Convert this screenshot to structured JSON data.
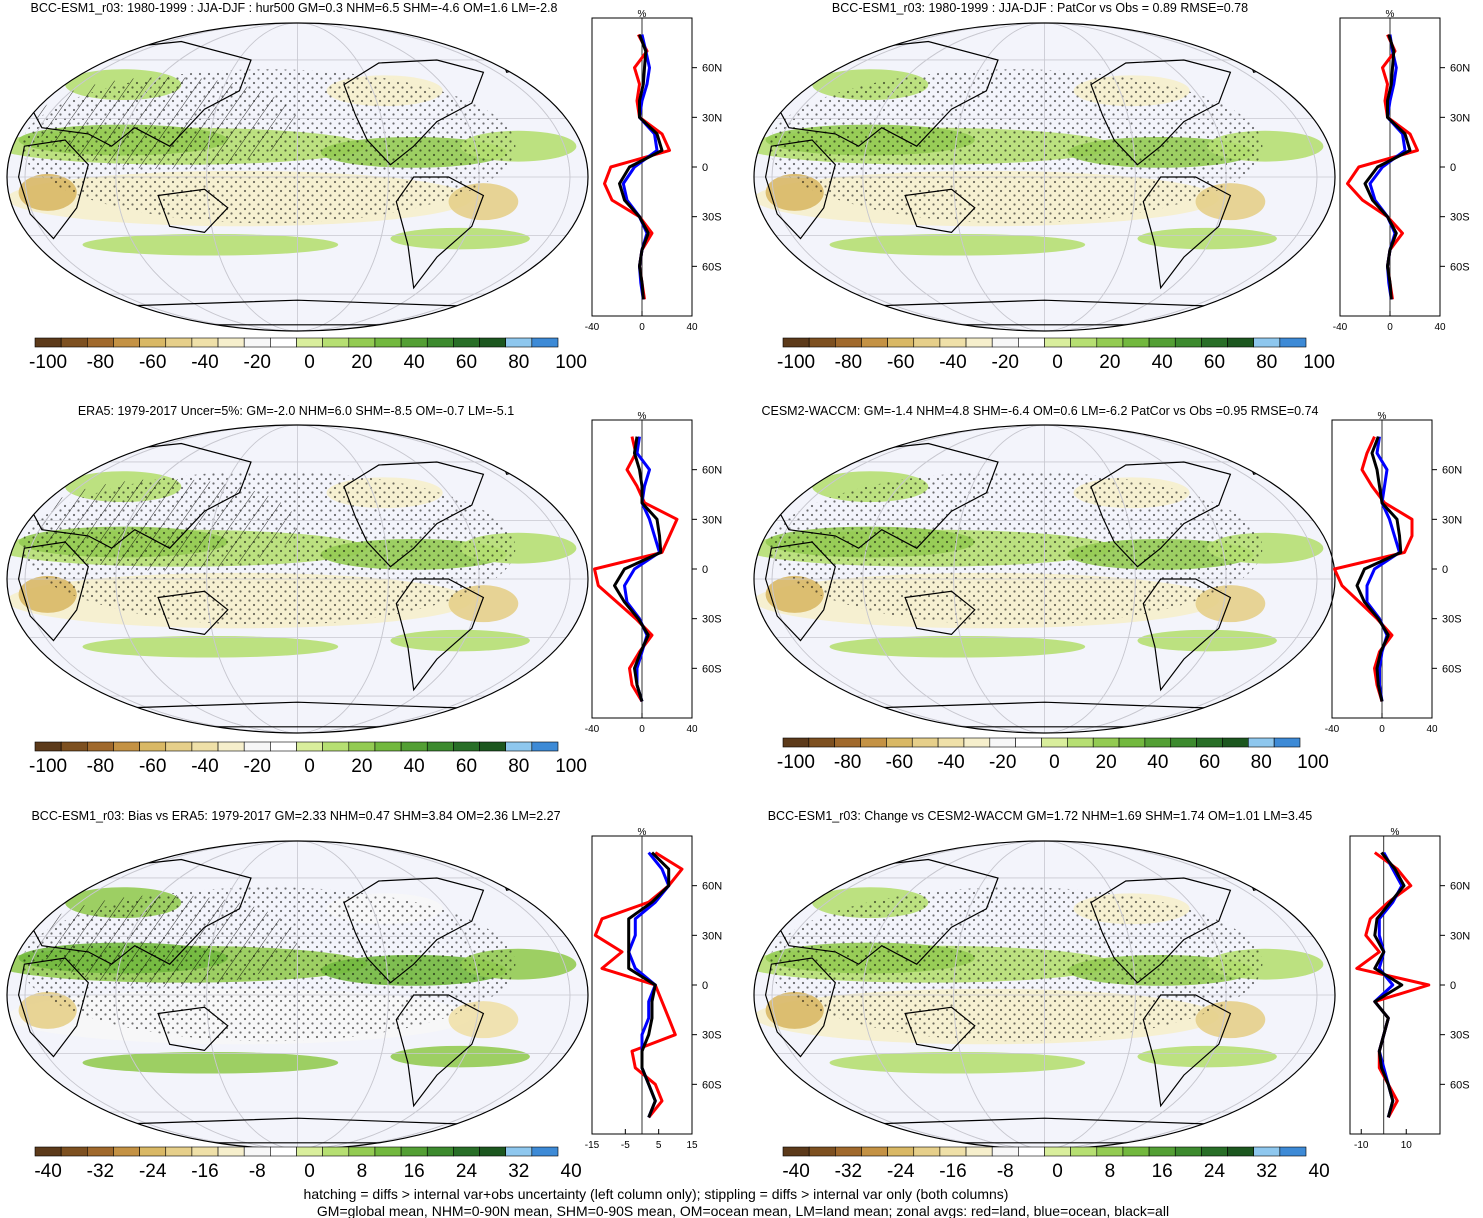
{
  "colors": {
    "bg": "#ffffff",
    "land_line": "#000000",
    "zonal_land": "#ff0000",
    "zonal_ocean": "#0000ff",
    "zonal_all": "#000000",
    "scale": [
      "#5c3a1a",
      "#7d5020",
      "#a0692c",
      "#c49244",
      "#d9b865",
      "#e6cf8a",
      "#efe0a8",
      "#f6efcc",
      "#f7f7f7",
      "#ffffff",
      "#d9ee9c",
      "#b6df72",
      "#93cb52",
      "#72b83e",
      "#539f34",
      "#3c8a2e",
      "#286e27",
      "#1c571f",
      "#8ec7ee",
      "#3d8ad6"
    ]
  },
  "panels": [
    {
      "title": "BCC-ESM1_r03: 1980-1999 : JJA-DJF : hur500 GM=0.3 NHM=6.5 SHM=-4.6 OM=1.6 LM=-2.8",
      "colorbar_labels": [
        "-100",
        "-80",
        "-60",
        "-40",
        "-20",
        "0",
        "20",
        "40",
        "60",
        "80",
        "100"
      ],
      "zonal_unit": "%",
      "zonal_xticks": [
        "-40",
        "0",
        "40"
      ],
      "zonal_lat_labels": [
        "60N",
        "30N",
        "0",
        "30S",
        "60S"
      ],
      "hatching": true
    },
    {
      "title": "BCC-ESM1_r03: 1980-1999 : JJA-DJF : PatCor vs Obs = 0.89 RMSE=0.78",
      "colorbar_labels": [
        "-100",
        "-80",
        "-60",
        "-40",
        "-20",
        "0",
        "20",
        "40",
        "60",
        "80",
        "100"
      ],
      "zonal_unit": "%",
      "zonal_xticks": [
        "-40",
        "0",
        "40"
      ],
      "zonal_lat_labels": [
        "60N",
        "30N",
        "0",
        "30S",
        "60S"
      ],
      "hatching": false
    },
    {
      "title": "ERA5: 1979-2017 Uncer=5%: GM=-2.0 NHM=6.0 SHM=-8.5 OM=-0.7 LM=-5.1",
      "colorbar_labels": [
        "-100",
        "-80",
        "-60",
        "-40",
        "-20",
        "0",
        "20",
        "40",
        "60",
        "80",
        "100"
      ],
      "zonal_unit": "%",
      "zonal_xticks": [
        "-40",
        "0",
        "40"
      ],
      "zonal_lat_labels": [
        "60N",
        "30N",
        "0",
        "30S",
        "60S"
      ],
      "hatching": true
    },
    {
      "title": "CESM2-WACCM: GM=-1.4 NHM=4.8 SHM=-6.4 OM=0.6 LM=-6.2 PatCor vs Obs =0.95 RMSE=0.74",
      "colorbar_labels": [
        "-100",
        "-80",
        "-60",
        "-40",
        "-20",
        "0",
        "20",
        "40",
        "60",
        "80",
        "100"
      ],
      "zonal_unit": "%",
      "zonal_xticks": [
        "-40",
        "0",
        "40"
      ],
      "zonal_lat_labels": [
        "60N",
        "30N",
        "0",
        "30S",
        "60S"
      ],
      "hatching": false
    },
    {
      "title": "BCC-ESM1_r03: Bias vs ERA5: 1979-2017 GM=2.33 NHM=0.47 SHM=3.84 OM=2.36 LM=2.27",
      "colorbar_labels": [
        "-40",
        "-32",
        "-24",
        "-16",
        "-8",
        "0",
        "8",
        "16",
        "24",
        "32",
        "40"
      ],
      "zonal_unit": "%",
      "zonal_xticks": [
        "-15",
        "-5",
        "5",
        "15"
      ],
      "zonal_lat_labels": [
        "60N",
        "30N",
        "0",
        "30S",
        "60S"
      ],
      "hatching": true
    },
    {
      "title": "BCC-ESM1_r03: Change vs CESM2-WACCM GM=1.72 NHM=1.69 SHM=1.74 OM=1.01 LM=3.45",
      "colorbar_labels": [
        "-40",
        "-32",
        "-24",
        "-16",
        "-8",
        "0",
        "8",
        "16",
        "24",
        "32",
        "40"
      ],
      "zonal_unit": "%",
      "zonal_xticks": [
        "-10",
        "10"
      ],
      "zonal_lat_labels": [
        "60N",
        "30N",
        "0",
        "30S",
        "60S"
      ],
      "hatching": false
    }
  ],
  "footer": {
    "line1": "hatching = diffs > internal var+obs uncertainty (left column only); stippling = diffs > internal var only (both columns)",
    "line2": "GM=global mean, NHM=0-90N mean, SHM=0-90S mean, OM=ocean mean, LM=land mean; zonal avgs: red=land, blue=ocean, black=all"
  },
  "chart_data": [
    {
      "type": "line",
      "title": "BCC-ESM1_r03: 1980-1999 : JJA-DJF : hur500 GM=0.3 NHM=6.5 SHM=-4.6 OM=1.6 LM=-2.8",
      "xlabel": "%",
      "xlim": [
        -40,
        40
      ],
      "ylim": [
        -90,
        90
      ],
      "x_ticks": [
        "-40",
        "0",
        "40"
      ],
      "y_ticks": [
        "60N",
        "30N",
        "0",
        "30S",
        "60S"
      ],
      "lat": [
        80,
        70,
        60,
        50,
        40,
        30,
        20,
        10,
        0,
        -10,
        -20,
        -30,
        -40,
        -50,
        -60,
        -70,
        -80
      ],
      "series": [
        {
          "name": "land",
          "values": [
            -3,
            4,
            -6,
            -2,
            -4,
            -2,
            16,
            22,
            -25,
            -30,
            -24,
            -2,
            8,
            0,
            -2,
            0,
            2
          ]
        },
        {
          "name": "ocean",
          "values": [
            0,
            3,
            6,
            4,
            0,
            -2,
            10,
            12,
            -6,
            -15,
            -12,
            -2,
            4,
            0,
            -2,
            -1,
            1
          ]
        },
        {
          "name": "all",
          "values": [
            -2,
            3,
            2,
            1,
            -2,
            -2,
            12,
            16,
            -10,
            -18,
            -14,
            -2,
            5,
            0,
            -2,
            0,
            1
          ]
        }
      ]
    },
    {
      "type": "line",
      "title": "BCC-ESM1_r03: 1980-1999 : JJA-DJF : PatCor vs Obs = 0.89 RMSE=0.78",
      "xlabel": "%",
      "xlim": [
        -40,
        40
      ],
      "ylim": [
        -90,
        90
      ],
      "x_ticks": [
        "-40",
        "0",
        "40"
      ],
      "y_ticks": [
        "60N",
        "30N",
        "0",
        "30S",
        "60S"
      ],
      "lat": [
        80,
        70,
        60,
        50,
        40,
        30,
        20,
        10,
        0,
        -10,
        -20,
        -30,
        -40,
        -50,
        -60,
        -70,
        -80
      ],
      "series": [
        {
          "name": "land",
          "values": [
            -2,
            4,
            -6,
            -2,
            -4,
            -2,
            16,
            22,
            -25,
            -34,
            -22,
            -2,
            10,
            0,
            -2,
            0,
            2
          ]
        },
        {
          "name": "ocean",
          "values": [
            0,
            2,
            5,
            3,
            0,
            -2,
            10,
            12,
            -6,
            -16,
            -12,
            -2,
            4,
            0,
            -2,
            -1,
            1
          ]
        },
        {
          "name": "all",
          "values": [
            -1,
            3,
            2,
            1,
            -2,
            -2,
            12,
            16,
            -10,
            -20,
            -14,
            -2,
            5,
            0,
            -2,
            0,
            1
          ]
        }
      ]
    },
    {
      "type": "line",
      "title": "ERA5: 1979-2017 Uncer=5%: GM=-2.0 NHM=6.0 SHM=-8.5 OM=-0.7 LM=-5.1",
      "xlabel": "%",
      "xlim": [
        -40,
        40
      ],
      "ylim": [
        -90,
        90
      ],
      "x_ticks": [
        "-40",
        "0",
        "40"
      ],
      "y_ticks": [
        "60N",
        "30N",
        "0",
        "30S",
        "60S"
      ],
      "lat": [
        80,
        70,
        60,
        50,
        40,
        30,
        20,
        10,
        0,
        -10,
        -20,
        -30,
        -40,
        -50,
        -60,
        -70,
        -80
      ],
      "series": [
        {
          "name": "land",
          "values": [
            -8,
            -5,
            -12,
            -4,
            2,
            28,
            22,
            16,
            -38,
            -35,
            -20,
            -5,
            8,
            -2,
            -10,
            -8,
            0
          ]
        },
        {
          "name": "ocean",
          "values": [
            -2,
            -4,
            6,
            2,
            0,
            6,
            10,
            14,
            -6,
            -14,
            -12,
            -2,
            4,
            0,
            -4,
            -4,
            0
          ]
        },
        {
          "name": "all",
          "values": [
            -4,
            -6,
            -2,
            0,
            0,
            12,
            14,
            15,
            -14,
            -22,
            -14,
            -3,
            5,
            -1,
            -6,
            -4,
            0
          ]
        }
      ]
    },
    {
      "type": "line",
      "title": "CESM2-WACCM: GM=-1.4 NHM=4.8 SHM=-6.4 OM=0.6 LM=-6.2 PatCor vs Obs =0.95 RMSE=0.74",
      "xlabel": "%",
      "xlim": [
        -40,
        40
      ],
      "ylim": [
        -90,
        90
      ],
      "x_ticks": [
        "-40",
        "0",
        "40"
      ],
      "y_ticks": [
        "60N",
        "30N",
        "0",
        "30S",
        "60S"
      ],
      "lat": [
        80,
        70,
        60,
        50,
        40,
        30,
        20,
        10,
        0,
        -10,
        -20,
        -30,
        -40,
        -50,
        -60,
        -70,
        -80
      ],
      "series": [
        {
          "name": "land",
          "values": [
            -6,
            -12,
            -16,
            -8,
            2,
            24,
            24,
            18,
            -38,
            -32,
            -18,
            -4,
            8,
            -2,
            -6,
            -4,
            0
          ]
        },
        {
          "name": "ocean",
          "values": [
            -2,
            -4,
            4,
            2,
            0,
            6,
            10,
            14,
            -6,
            -12,
            -12,
            -2,
            4,
            0,
            -2,
            -2,
            0
          ]
        },
        {
          "name": "all",
          "values": [
            -3,
            -8,
            -4,
            -2,
            0,
            12,
            14,
            15,
            -14,
            -20,
            -14,
            -3,
            5,
            -1,
            -4,
            -3,
            0
          ]
        }
      ]
    },
    {
      "type": "line",
      "title": "BCC-ESM1_r03: Bias vs ERA5: 1979-2017 GM=2.33 NHM=0.47 SHM=3.84 OM=2.36 LM=2.27",
      "xlabel": "%",
      "xlim": [
        -15,
        15
      ],
      "ylim": [
        -90,
        90
      ],
      "x_ticks": [
        "-15",
        "-5",
        "5",
        "15"
      ],
      "y_ticks": [
        "60N",
        "30N",
        "0",
        "30S",
        "60S"
      ],
      "lat": [
        80,
        70,
        60,
        50,
        40,
        30,
        20,
        10,
        0,
        -10,
        -20,
        -30,
        -40,
        -50,
        -60,
        -70,
        -80
      ],
      "series": [
        {
          "name": "land",
          "values": [
            4,
            12,
            8,
            2,
            -12,
            -14,
            -6,
            -12,
            4,
            6,
            8,
            10,
            -3,
            -2,
            4,
            6,
            2
          ]
        },
        {
          "name": "ocean",
          "values": [
            2,
            6,
            8,
            4,
            -2,
            -2,
            -4,
            -2,
            4,
            2,
            2,
            0,
            0,
            0,
            2,
            4,
            2
          ]
        },
        {
          "name": "all",
          "values": [
            3,
            8,
            8,
            3,
            -4,
            -4,
            -4,
            -4,
            4,
            3,
            3,
            2,
            0,
            0,
            2,
            4,
            2
          ]
        }
      ]
    },
    {
      "type": "line",
      "title": "BCC-ESM1_r03: Change vs CESM2-WACCM GM=1.72 NHM=1.69 SHM=1.74 OM=1.01 LM=3.45",
      "xlabel": "%",
      "xlim": [
        -15,
        25
      ],
      "ylim": [
        -90,
        90
      ],
      "x_ticks": [
        "-10",
        "10"
      ],
      "y_ticks": [
        "60N",
        "30N",
        "0",
        "30S",
        "60S"
      ],
      "lat": [
        80,
        70,
        60,
        50,
        40,
        30,
        20,
        10,
        0,
        -10,
        -20,
        -30,
        -40,
        -50,
        -60,
        -70,
        -80
      ],
      "series": [
        {
          "name": "land",
          "values": [
            -4,
            6,
            12,
            2,
            -6,
            -8,
            -2,
            -12,
            20,
            -4,
            2,
            0,
            -2,
            -2,
            2,
            6,
            2
          ]
        },
        {
          "name": "ocean",
          "values": [
            0,
            4,
            8,
            4,
            -2,
            -2,
            0,
            -2,
            4,
            -4,
            2,
            0,
            -2,
            0,
            2,
            4,
            2
          ]
        },
        {
          "name": "all",
          "values": [
            -1,
            5,
            9,
            3,
            -3,
            -4,
            0,
            -4,
            8,
            -4,
            2,
            0,
            -2,
            -1,
            2,
            4,
            2
          ]
        }
      ]
    }
  ]
}
